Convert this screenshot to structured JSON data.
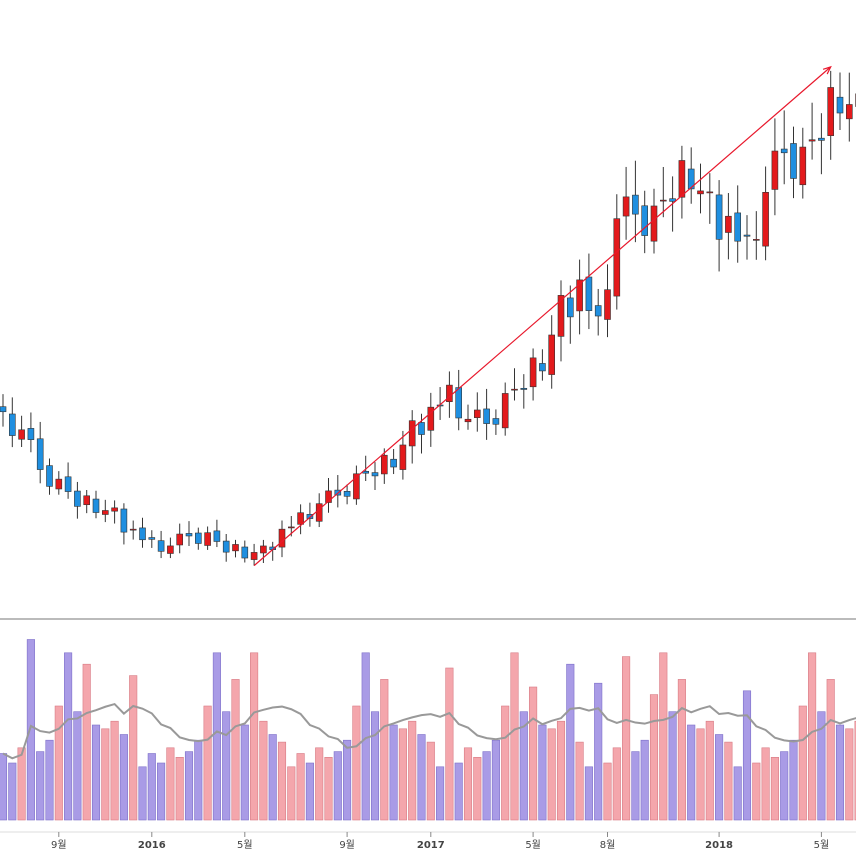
{
  "colors": {
    "up_candle": "#e31a1c",
    "down_candle": "#1f8fe0",
    "wick": "#333333",
    "up_volume": "#f4a6ac",
    "down_volume": "#a99be6",
    "volume_ma": "#999999",
    "trend_arrow": "#e8182c",
    "divider": "#777777"
  },
  "chart_data": {
    "type": "candlestick",
    "panels": [
      "price",
      "volume"
    ],
    "grid": false,
    "legend": "none",
    "x_axis": {
      "ticks": [
        {
          "label": "9월",
          "bar_index": 6,
          "year_marker": false
        },
        {
          "label": "2016",
          "bar_index": 16,
          "year_marker": true
        },
        {
          "label": "5월",
          "bar_index": 26,
          "year_marker": false
        },
        {
          "label": "9월",
          "bar_index": 37,
          "year_marker": false
        },
        {
          "label": "2017",
          "bar_index": 46,
          "year_marker": true
        },
        {
          "label": "5월",
          "bar_index": 57,
          "year_marker": false
        },
        {
          "label": "8월",
          "bar_index": 65,
          "year_marker": false
        },
        {
          "label": "2018",
          "bar_index": 77,
          "year_marker": true
        },
        {
          "label": "5월",
          "bar_index": 88,
          "year_marker": false
        }
      ]
    },
    "price_range": [
      0,
      100
    ],
    "volume_range": [
      0,
      100
    ],
    "candles": [],
    "trend_line": {
      "from_bar": 27,
      "to_bar": 89,
      "arrow": true
    }
  }
}
